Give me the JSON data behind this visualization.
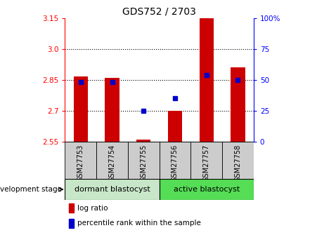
{
  "title": "GDS752 / 2703",
  "samples": [
    "GSM27753",
    "GSM27754",
    "GSM27755",
    "GSM27756",
    "GSM27757",
    "GSM27758"
  ],
  "bar_bottom": 2.55,
  "bar_top": [
    2.865,
    2.86,
    2.56,
    2.7,
    3.15,
    2.91
  ],
  "percentile_y": [
    2.84,
    2.838,
    2.7,
    2.762,
    2.875,
    2.85
  ],
  "ylim": [
    2.55,
    3.15
  ],
  "yticks_left": [
    2.55,
    2.7,
    2.85,
    3.0,
    3.15
  ],
  "yticks_right_pct": [
    0,
    25,
    50,
    75,
    100
  ],
  "bar_color": "#cc0000",
  "blue_color": "#0000cc",
  "tick_bg": "#cccccc",
  "group1_label": "dormant blastocyst",
  "group2_label": "active blastocyst",
  "group1_color": "#c8e6c8",
  "group2_color": "#55dd55",
  "dev_stage_label": "development stage",
  "legend_bar": "log ratio",
  "legend_pct": "percentile rank within the sample",
  "bar_width": 0.45,
  "figsize": [
    4.51,
    3.45
  ],
  "dpi": 100
}
